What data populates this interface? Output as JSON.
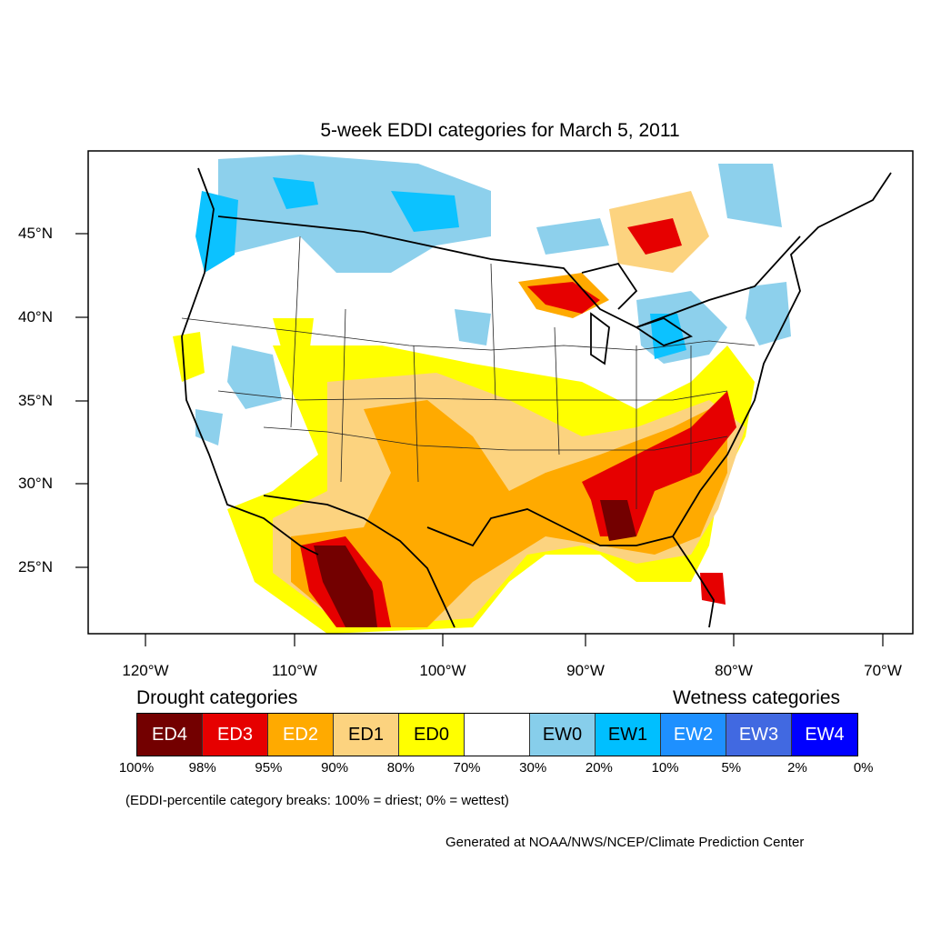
{
  "title": "5-week EDDI categories for March 5, 2011",
  "lat_labels": [
    "45°N",
    "40°N",
    "35°N",
    "30°N",
    "25°N"
  ],
  "lon_labels": [
    "120°W",
    "110°W",
    "100°W",
    "90°W",
    "80°W",
    "70°W"
  ],
  "legend": {
    "drought_heading": "Drought categories",
    "wetness_heading": "Wetness categories",
    "categories": [
      {
        "label": "ED4",
        "color": "#730000",
        "text_color": "#ffffff"
      },
      {
        "label": "ED3",
        "color": "#e60000",
        "text_color": "#ffffff"
      },
      {
        "label": "ED2",
        "color": "#ffaa00",
        "text_color": "#ffffff"
      },
      {
        "label": "ED1",
        "color": "#fcd37f",
        "text_color": "#000000"
      },
      {
        "label": "ED0",
        "color": "#ffff00",
        "text_color": "#000000"
      },
      {
        "label": "",
        "color": "#ffffff",
        "text_color": "#000000"
      },
      {
        "label": "EW0",
        "color": "#87ceeb",
        "text_color": "#000000"
      },
      {
        "label": "EW1",
        "color": "#00bfff",
        "text_color": "#000000"
      },
      {
        "label": "EW2",
        "color": "#1e90ff",
        "text_color": "#ffffff"
      },
      {
        "label": "EW3",
        "color": "#4169e1",
        "text_color": "#ffffff"
      },
      {
        "label": "EW4",
        "color": "#0000ff",
        "text_color": "#ffffff"
      }
    ],
    "breaks": [
      "100%",
      "98%",
      "95%",
      "90%",
      "80%",
      "70%",
      "30%",
      "20%",
      "10%",
      "5%",
      "2%",
      "0%"
    ]
  },
  "note": "(EDDI-percentile category breaks: 100% = driest; 0% = wettest)",
  "credit": "Generated at NOAA/NWS/NCEP/Climate Prediction Center"
}
